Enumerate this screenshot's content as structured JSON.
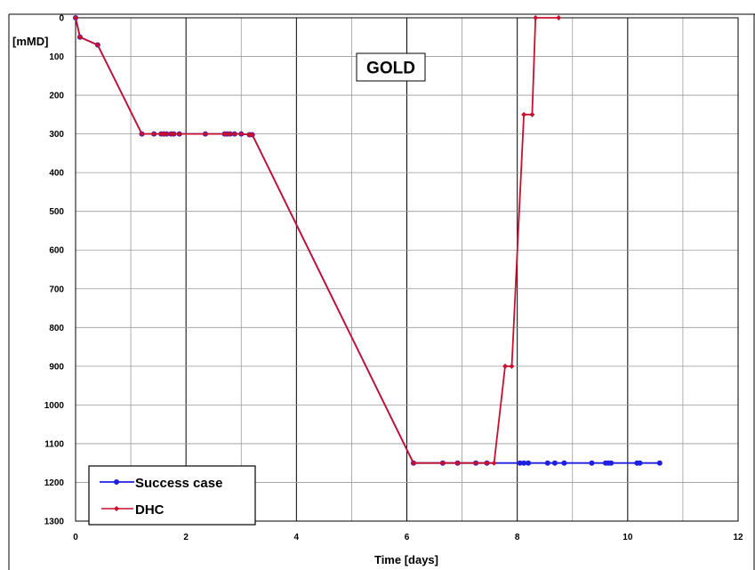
{
  "chart_data": {
    "type": "line",
    "title": "GOLD",
    "xlabel": "Time [days]",
    "ylabel": "[mMD]",
    "xlim": [
      0,
      12
    ],
    "ylim": [
      0,
      1300
    ],
    "y_inverted": true,
    "x_ticks": [
      0,
      2,
      4,
      6,
      8,
      10,
      12
    ],
    "y_ticks": [
      0,
      100,
      200,
      300,
      400,
      500,
      600,
      700,
      800,
      900,
      1000,
      1100,
      1200,
      1300
    ],
    "grid": true,
    "legend_position": "bottom-left",
    "series": [
      {
        "name": "Success case",
        "color": "#1f1fe0",
        "marker": "circle",
        "points": [
          [
            0,
            0
          ],
          [
            0.08,
            50
          ],
          [
            0.4,
            70
          ],
          [
            1.2,
            300
          ],
          [
            1.42,
            300
          ],
          [
            1.55,
            300
          ],
          [
            1.6,
            300
          ],
          [
            1.65,
            300
          ],
          [
            1.73,
            300
          ],
          [
            1.78,
            300
          ],
          [
            1.88,
            300
          ],
          [
            2.35,
            300
          ],
          [
            2.7,
            300
          ],
          [
            2.75,
            300
          ],
          [
            2.8,
            300
          ],
          [
            2.88,
            300
          ],
          [
            3.0,
            300
          ],
          [
            3.15,
            302
          ],
          [
            3.2,
            302
          ],
          [
            6.12,
            1150
          ],
          [
            6.65,
            1150
          ],
          [
            6.92,
            1150
          ],
          [
            7.25,
            1150
          ],
          [
            7.45,
            1150
          ],
          [
            8.05,
            1150
          ],
          [
            8.12,
            1150
          ],
          [
            8.2,
            1150
          ],
          [
            8.55,
            1150
          ],
          [
            8.68,
            1150
          ],
          [
            8.85,
            1150
          ],
          [
            9.35,
            1150
          ],
          [
            9.6,
            1150
          ],
          [
            9.65,
            1150
          ],
          [
            9.7,
            1150
          ],
          [
            10.17,
            1150
          ],
          [
            10.22,
            1150
          ],
          [
            10.58,
            1150
          ]
        ]
      },
      {
        "name": "DHC",
        "color": "#c8102e",
        "marker": "diamond",
        "points": [
          [
            0,
            0
          ],
          [
            0.08,
            50
          ],
          [
            0.4,
            70
          ],
          [
            1.2,
            300
          ],
          [
            1.42,
            300
          ],
          [
            1.55,
            300
          ],
          [
            1.6,
            300
          ],
          [
            1.65,
            300
          ],
          [
            1.73,
            300
          ],
          [
            1.78,
            300
          ],
          [
            1.88,
            300
          ],
          [
            2.35,
            300
          ],
          [
            2.7,
            300
          ],
          [
            2.75,
            300
          ],
          [
            2.8,
            300
          ],
          [
            2.88,
            300
          ],
          [
            3.0,
            300
          ],
          [
            3.15,
            302
          ],
          [
            3.2,
            302
          ],
          [
            6.12,
            1150
          ],
          [
            6.65,
            1150
          ],
          [
            6.92,
            1150
          ],
          [
            7.25,
            1150
          ],
          [
            7.45,
            1150
          ],
          [
            7.58,
            1150
          ],
          [
            7.78,
            900
          ],
          [
            7.9,
            900
          ],
          [
            8.12,
            250
          ],
          [
            8.27,
            250
          ],
          [
            8.33,
            0
          ],
          [
            8.75,
            0
          ]
        ]
      }
    ]
  }
}
